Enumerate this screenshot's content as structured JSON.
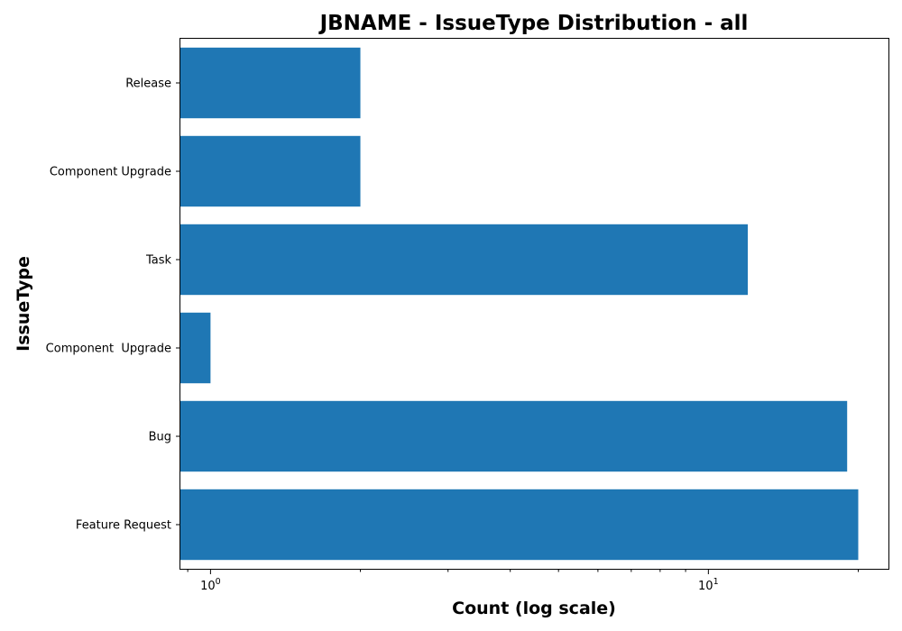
{
  "chart_data": {
    "type": "bar",
    "orientation": "horizontal",
    "title": "JBNAME - IssueType Distribution - all",
    "xlabel": "Count (log scale)",
    "ylabel": "IssueType",
    "x_scale": "log",
    "xlim": [
      0.87,
      23
    ],
    "x_ticks": [
      {
        "base": "10",
        "exp": "0",
        "value": 1
      },
      {
        "base": "10",
        "exp": "1",
        "value": 10
      }
    ],
    "categories": [
      "Release",
      "Component Upgrade",
      "Task",
      "Component  Upgrade",
      "Bug",
      "Feature Request"
    ],
    "values": [
      2,
      2,
      12,
      1,
      19,
      20
    ],
    "bar_color": "#1f77b4",
    "grid": false,
    "legend": "none"
  }
}
